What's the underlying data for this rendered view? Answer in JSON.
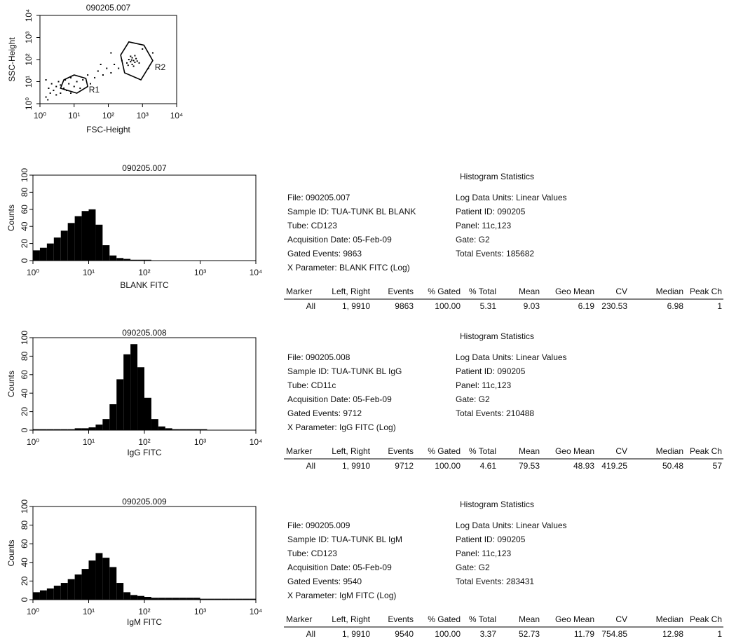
{
  "chart_data": [
    {
      "type": "scatter",
      "title": "090205.007",
      "xlabel": "FSC-Height",
      "ylabel": "SSC-Height",
      "xscale": "log",
      "yscale": "log",
      "color": "#000000",
      "xlim": [
        1,
        10000
      ],
      "ylim": [
        1,
        10000
      ],
      "xticks": [
        {
          "value": 1,
          "label": "10⁰"
        },
        {
          "value": 10,
          "label": "10¹"
        },
        {
          "value": 100,
          "label": "10²"
        },
        {
          "value": 1000,
          "label": "10³"
        },
        {
          "value": 10000,
          "label": "10⁴"
        }
      ],
      "yticks": [
        {
          "value": 1,
          "label": "10⁰"
        },
        {
          "value": 10,
          "label": "10¹"
        },
        {
          "value": 100,
          "label": "10²"
        },
        {
          "value": 1000,
          "label": "10³"
        },
        {
          "value": 10000,
          "label": "10⁴"
        }
      ],
      "x": [
        1.5,
        1.8,
        2,
        2.2,
        2.5,
        3,
        3,
        3.5,
        4,
        4,
        5,
        5.5,
        6,
        7,
        8,
        8,
        10,
        12,
        15,
        18,
        25,
        30,
        40,
        50,
        70,
        90,
        120,
        150,
        200,
        250,
        1.5,
        1.7,
        350,
        400,
        450,
        500,
        500,
        550,
        600,
        650,
        700,
        450,
        380,
        800,
        600,
        550,
        480,
        1500,
        2000,
        120,
        60,
        1000
      ],
      "y": [
        2,
        5,
        3,
        8,
        4,
        6,
        2.5,
        10,
        3,
        7,
        5,
        12,
        4,
        8,
        3,
        15,
        6,
        10,
        5,
        12,
        20,
        8,
        15,
        30,
        20,
        40,
        25,
        60,
        40,
        90,
        12,
        1.5,
        70,
        100,
        80,
        120,
        60,
        90,
        75,
        110,
        85,
        140,
        55,
        70,
        150,
        50,
        95,
        40,
        200,
        200,
        60,
        300
      ],
      "regions": [
        {
          "label": "R1",
          "points": [
            [
              4,
              5
            ],
            [
              5,
              12
            ],
            [
              10,
              20
            ],
            [
              22,
              14
            ],
            [
              25,
              6
            ],
            [
              12,
              3
            ]
          ],
          "label_at": [
            27,
            4
          ]
        },
        {
          "label": "R2",
          "points": [
            [
              230,
              160
            ],
            [
              400,
              630
            ],
            [
              1100,
              450
            ],
            [
              2000,
              90
            ],
            [
              900,
              12
            ],
            [
              300,
              25
            ]
          ],
          "label_at": [
            2300,
            42
          ]
        }
      ]
    },
    {
      "type": "histogram",
      "title": "090205.007",
      "xlabel": "BLANK FITC",
      "ylabel": "Counts",
      "xscale": "log",
      "color": "#000000",
      "xlim": [
        1,
        10000
      ],
      "ylim": [
        0,
        100
      ],
      "xticks": [
        {
          "value": 1,
          "label": "10⁰"
        },
        {
          "value": 10,
          "label": "10¹"
        },
        {
          "value": 100,
          "label": "10²"
        },
        {
          "value": 1000,
          "label": "10³"
        },
        {
          "value": 10000,
          "label": "10⁴"
        }
      ],
      "yticks": [
        0,
        20,
        40,
        60,
        80,
        100
      ],
      "bins": [
        1,
        1.334,
        1.778,
        2.371,
        3.162,
        4.217,
        5.623,
        7.499,
        10,
        13.34,
        17.78,
        23.71,
        31.62,
        42.17,
        56.23,
        74.99,
        100,
        133.4,
        177.8,
        237.1,
        316.2,
        421.7,
        562.3,
        749.9,
        1000,
        1334,
        1778,
        2371,
        3162,
        4217,
        5623,
        7499,
        10000
      ],
      "values": [
        12,
        15,
        20,
        27,
        35,
        44,
        52,
        58,
        60,
        42,
        18,
        6,
        3,
        2,
        1,
        1,
        1,
        0,
        0,
        0,
        0,
        0,
        0,
        0,
        0,
        0,
        0,
        0,
        0,
        0,
        0,
        0
      ]
    },
    {
      "type": "histogram",
      "title": "090205.008",
      "xlabel": "IgG FITC",
      "ylabel": "Counts",
      "xscale": "log",
      "color": "#000000",
      "xlim": [
        1,
        10000
      ],
      "ylim": [
        0,
        100
      ],
      "xticks": [
        {
          "value": 1,
          "label": "10⁰"
        },
        {
          "value": 10,
          "label": "10¹"
        },
        {
          "value": 100,
          "label": "10²"
        },
        {
          "value": 1000,
          "label": "10³"
        },
        {
          "value": 10000,
          "label": "10⁴"
        }
      ],
      "yticks": [
        0,
        20,
        40,
        60,
        80,
        100
      ],
      "bins": [
        1,
        1.334,
        1.778,
        2.371,
        3.162,
        4.217,
        5.623,
        7.499,
        10,
        13.34,
        17.78,
        23.71,
        31.62,
        42.17,
        56.23,
        74.99,
        100,
        133.4,
        177.8,
        237.1,
        316.2,
        421.7,
        562.3,
        749.9,
        1000,
        1334,
        1778,
        2371,
        3162,
        4217,
        5623,
        7499,
        10000
      ],
      "values": [
        1,
        1,
        1,
        1,
        1,
        1,
        2,
        2,
        3,
        6,
        12,
        28,
        55,
        82,
        93,
        68,
        35,
        12,
        4,
        2,
        1,
        1,
        1,
        1,
        1,
        0,
        0,
        0,
        0,
        0,
        0,
        0
      ]
    },
    {
      "type": "histogram",
      "title": "090205.009",
      "xlabel": "IgM FITC",
      "ylabel": "Counts",
      "xscale": "log",
      "color": "#000000",
      "xlim": [
        1,
        10000
      ],
      "ylim": [
        0,
        100
      ],
      "xticks": [
        {
          "value": 1,
          "label": "10⁰"
        },
        {
          "value": 10,
          "label": "10¹"
        },
        {
          "value": 100,
          "label": "10²"
        },
        {
          "value": 1000,
          "label": "10³"
        },
        {
          "value": 10000,
          "label": "10⁴"
        }
      ],
      "yticks": [
        0,
        20,
        40,
        60,
        80,
        100
      ],
      "bins": [
        1,
        1.334,
        1.778,
        2.371,
        3.162,
        4.217,
        5.623,
        7.499,
        10,
        13.34,
        17.78,
        23.71,
        31.62,
        42.17,
        56.23,
        74.99,
        100,
        133.4,
        177.8,
        237.1,
        316.2,
        421.7,
        562.3,
        749.9,
        1000,
        1334,
        1778,
        2371,
        3162,
        4217,
        5623,
        7499,
        10000
      ],
      "values": [
        8,
        10,
        12,
        15,
        18,
        22,
        27,
        33,
        42,
        50,
        45,
        35,
        18,
        8,
        5,
        4,
        3,
        2,
        2,
        2,
        2,
        2,
        2,
        2,
        1,
        1,
        1,
        1,
        1,
        1,
        1,
        1
      ]
    }
  ],
  "reports": [
    {
      "heading": "Histogram Statistics",
      "left": [
        "File: 090205.007",
        "Sample ID: TUA-TUNK BL BLANK",
        "Tube: CD123",
        "Acquisition Date: 05-Feb-09",
        "Gated Events: 9863",
        "X Parameter: BLANK FITC (Log)"
      ],
      "right": [
        "Log Data Units: Linear Values",
        "Patient ID: 090205",
        "Panel: 11c,123",
        "Gate: G2",
        "Total Events: 185682"
      ],
      "columns": [
        "Marker",
        "Left, Right",
        "Events",
        "% Gated",
        "% Total",
        "Mean",
        "Geo Mean",
        "CV",
        "Median",
        "Peak Ch"
      ],
      "row": [
        "All",
        "1, 9910",
        "9863",
        "100.00",
        "5.31",
        "9.03",
        "6.19",
        "230.53",
        "6.98",
        "1"
      ]
    },
    {
      "heading": "Histogram Statistics",
      "left": [
        "File: 090205.008",
        "Sample ID: TUA-TUNK BL IgG",
        "Tube: CD11c",
        "Acquisition Date: 05-Feb-09",
        "Gated Events: 9712",
        "X Parameter: IgG FITC (Log)"
      ],
      "right": [
        "Log Data Units: Linear Values",
        "Patient ID: 090205",
        "Panel: 11c,123",
        "Gate: G2",
        "Total Events: 210488"
      ],
      "columns": [
        "Marker",
        "Left, Right",
        "Events",
        "% Gated",
        "% Total",
        "Mean",
        "Geo Mean",
        "CV",
        "Median",
        "Peak Ch"
      ],
      "row": [
        "All",
        "1, 9910",
        "9712",
        "100.00",
        "4.61",
        "79.53",
        "48.93",
        "419.25",
        "50.48",
        "57"
      ]
    },
    {
      "heading": "Histogram Statistics",
      "left": [
        "File: 090205.009",
        "Sample ID: TUA-TUNK BL IgM",
        "Tube: CD123",
        "Acquisition Date: 05-Feb-09",
        "Gated Events: 9540",
        "X Parameter: IgM FITC (Log)"
      ],
      "right": [
        "Log Data Units: Linear Values",
        "Patient ID: 090205",
        "Panel: 11c,123",
        "Gate: G2",
        "Total Events: 283431"
      ],
      "columns": [
        "Marker",
        "Left, Right",
        "Events",
        "% Gated",
        "% Total",
        "Mean",
        "Geo Mean",
        "CV",
        "Median",
        "Peak Ch"
      ],
      "row": [
        "All",
        "1, 9910",
        "9540",
        "100.00",
        "3.37",
        "52.73",
        "11.79",
        "754.85",
        "12.98",
        "1"
      ]
    }
  ]
}
